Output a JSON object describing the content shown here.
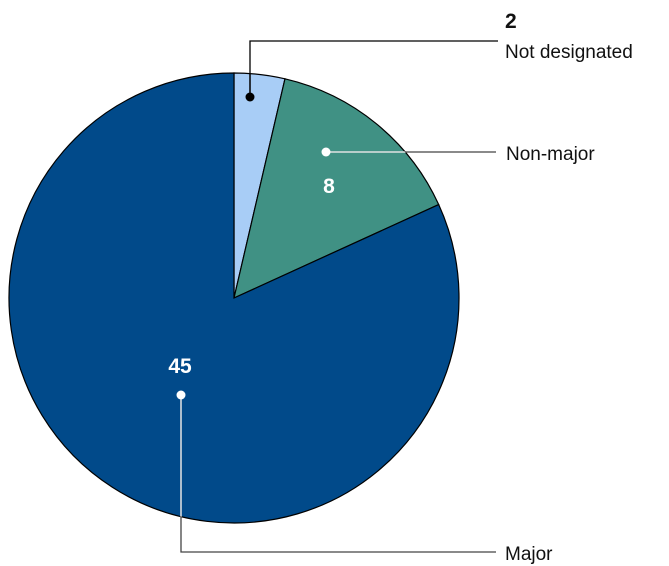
{
  "chart_data": {
    "type": "pie",
    "slices": [
      {
        "label": "Not designated",
        "value": 2,
        "value_text": "2",
        "color": "#a8cdf6",
        "line_color": "#000000",
        "value_color": "#111111"
      },
      {
        "label": "Non-major",
        "value": 8,
        "value_text": "8",
        "color": "#409184",
        "line_color": "#ffffff",
        "value_color": "#ffffff"
      },
      {
        "label": "Major",
        "value": 45,
        "value_text": "45",
        "color": "#014a8a",
        "line_color": "#ffffff",
        "value_color": "#ffffff"
      }
    ],
    "start_angle_deg": 0,
    "direction": "clockwise",
    "edge_color": "#000000"
  }
}
